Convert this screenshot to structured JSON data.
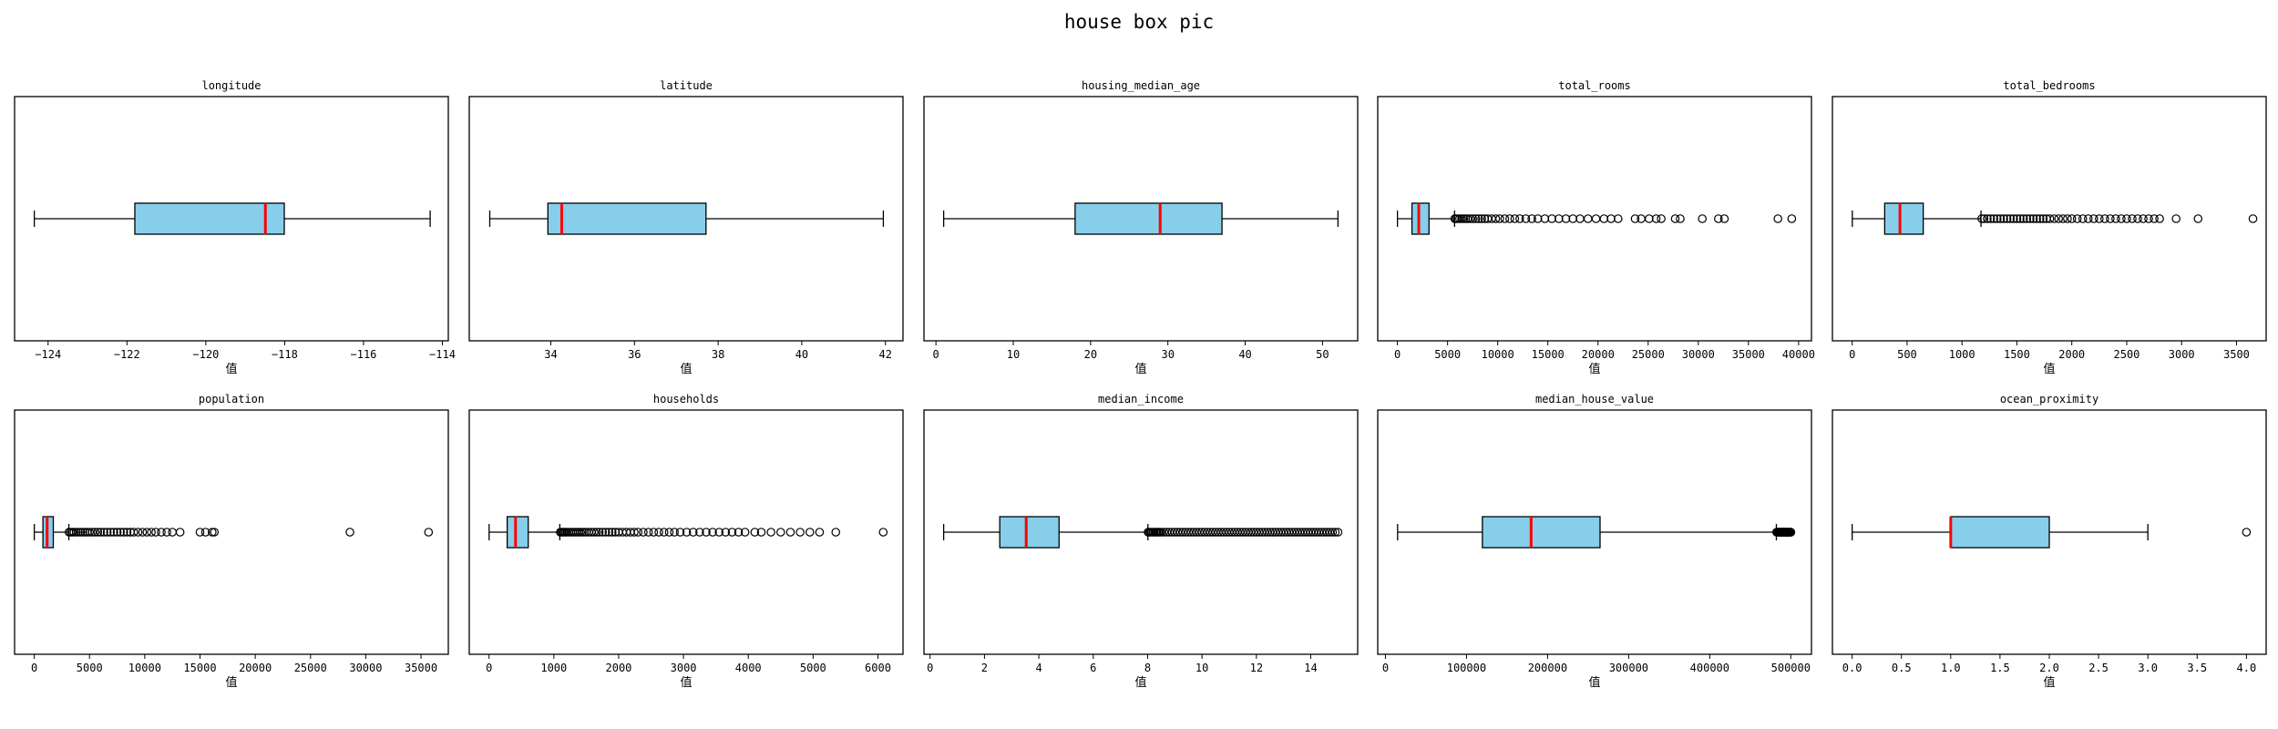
{
  "figure": {
    "title": "house box pic",
    "box_fill": "#87CEEB",
    "median_color": "#FF0000",
    "line_color": "#000000"
  },
  "chart_data": [
    {
      "type": "boxplot",
      "title": "longitude",
      "xlabel": "值",
      "xlim": [
        -124.85,
        -113.85
      ],
      "ticks": [
        -124,
        -122,
        -120,
        -118,
        -116,
        -114
      ],
      "tick_labels": [
        "−124",
        "−122",
        "−120",
        "−118",
        "−116",
        "−114"
      ],
      "stats": {
        "min": -124.35,
        "q1": -121.8,
        "median": -118.49,
        "q3": -118.01,
        "max": -114.31
      },
      "outliers": []
    },
    {
      "type": "boxplot",
      "title": "latitude",
      "xlabel": "值",
      "xlim": [
        32.05,
        42.42
      ],
      "ticks": [
        34,
        36,
        38,
        40,
        42
      ],
      "tick_labels": [
        "34",
        "36",
        "38",
        "40",
        "42"
      ],
      "stats": {
        "min": 32.54,
        "q1": 33.93,
        "median": 34.26,
        "q3": 37.71,
        "max": 41.95
      },
      "outliers": []
    },
    {
      "type": "boxplot",
      "title": "housing_median_age",
      "xlabel": "值",
      "xlim": [
        -1.55,
        54.55
      ],
      "ticks": [
        0,
        10,
        20,
        30,
        40,
        50
      ],
      "tick_labels": [
        "0",
        "10",
        "20",
        "30",
        "40",
        "50"
      ],
      "stats": {
        "min": 1,
        "q1": 18,
        "median": 29,
        "q3": 37,
        "max": 52
      },
      "outliers": []
    },
    {
      "type": "boxplot",
      "title": "total_rooms",
      "xlabel": "值",
      "xlim": [
        -1964,
        41284
      ],
      "ticks": [
        0,
        5000,
        10000,
        15000,
        20000,
        25000,
        30000,
        35000,
        40000
      ],
      "tick_labels": [
        "0",
        "5000",
        "10000",
        "15000",
        "20000",
        "25000",
        "30000",
        "35000",
        "40000"
      ],
      "stats": {
        "min": 2,
        "q1": 1448,
        "median": 2127,
        "q3": 3148,
        "max": 5698
      },
      "outliers": [
        5720,
        5850,
        6000,
        6200,
        6400,
        6600,
        6800,
        7000,
        7250,
        7500,
        7800,
        8100,
        8400,
        8700,
        9000,
        9400,
        9800,
        10200,
        10700,
        11200,
        11700,
        12200,
        12800,
        13400,
        14000,
        14700,
        15400,
        16100,
        16800,
        17500,
        18200,
        19000,
        19800,
        20600,
        21300,
        22000,
        23700,
        24300,
        25100,
        25800,
        26300,
        27700,
        28200,
        30400,
        32000,
        32600,
        37937,
        39320
      ]
    },
    {
      "type": "boxplot",
      "title": "total_bedrooms",
      "xlabel": "值",
      "xlim": [
        -180,
        3770
      ],
      "ticks": [
        0,
        500,
        1000,
        1500,
        2000,
        2500,
        3000,
        3500
      ],
      "tick_labels": [
        "0",
        "500",
        "1000",
        "1500",
        "2000",
        "2500",
        "3000",
        "3500"
      ],
      "stats": {
        "min": 1,
        "q1": 296,
        "median": 435,
        "q3": 647,
        "max": 1173
      },
      "outliers": [
        1180,
        1200,
        1230,
        1260,
        1290,
        1320,
        1350,
        1380,
        1410,
        1440,
        1470,
        1500,
        1530,
        1560,
        1590,
        1620,
        1650,
        1680,
        1710,
        1740,
        1770,
        1800,
        1840,
        1880,
        1920,
        1960,
        2000,
        2050,
        2100,
        2150,
        2200,
        2250,
        2300,
        2350,
        2400,
        2450,
        2500,
        2550,
        2600,
        2650,
        2700,
        2750,
        2800,
        2950,
        3150,
        3650
      ]
    },
    {
      "type": "boxplot",
      "title": "population",
      "xlabel": "值",
      "xlim": [
        -1780,
        37470
      ],
      "ticks": [
        0,
        5000,
        10000,
        15000,
        20000,
        25000,
        30000,
        35000
      ],
      "tick_labels": [
        "0",
        "5000",
        "10000",
        "15000",
        "20000",
        "25000",
        "30000",
        "35000"
      ],
      "stats": {
        "min": 3,
        "q1": 787,
        "median": 1166,
        "q3": 1725,
        "max": 3132
      },
      "outliers": [
        3150,
        3300,
        3450,
        3600,
        3800,
        4000,
        4200,
        4400,
        4600,
        4800,
        5000,
        5250,
        5500,
        5750,
        6000,
        6300,
        6600,
        6900,
        7200,
        7500,
        7800,
        8100,
        8400,
        8700,
        9000,
        9400,
        9800,
        10200,
        10600,
        11000,
        11500,
        12000,
        12500,
        13200,
        15000,
        15500,
        16100,
        16300,
        28566,
        35682
      ]
    },
    {
      "type": "boxplot",
      "title": "households",
      "xlabel": "值",
      "xlim": [
        -305,
        6387
      ],
      "ticks": [
        0,
        1000,
        2000,
        3000,
        4000,
        5000,
        6000
      ],
      "tick_labels": [
        "0",
        "1000",
        "2000",
        "3000",
        "4000",
        "5000",
        "6000"
      ],
      "stats": {
        "min": 1,
        "q1": 280,
        "median": 409,
        "q3": 605,
        "max": 1092
      },
      "outliers": [
        1100,
        1120,
        1140,
        1160,
        1180,
        1200,
        1230,
        1260,
        1290,
        1320,
        1350,
        1380,
        1410,
        1440,
        1470,
        1500,
        1540,
        1580,
        1620,
        1660,
        1700,
        1750,
        1800,
        1850,
        1900,
        1950,
        2000,
        2060,
        2120,
        2180,
        2240,
        2300,
        2380,
        2460,
        2540,
        2620,
        2700,
        2780,
        2860,
        2950,
        3050,
        3150,
        3250,
        3350,
        3450,
        3550,
        3650,
        3750,
        3850,
        3950,
        4100,
        4200,
        4350,
        4500,
        4650,
        4800,
        4950,
        5100,
        5350,
        6082
      ]
    },
    {
      "type": "boxplot",
      "title": "median_income",
      "xlabel": "值",
      "xlim": [
        -0.225,
        15.725
      ],
      "ticks": [
        0,
        2,
        4,
        6,
        8,
        10,
        12,
        14
      ],
      "tick_labels": [
        "0",
        "2",
        "4",
        "6",
        "8",
        "10",
        "12",
        "14"
      ],
      "stats": {
        "min": 0.4999,
        "q1": 2.563,
        "median": 3.5348,
        "q3": 4.7432,
        "max": 8.0113
      },
      "outliers": [
        8.02,
        8.05,
        8.1,
        8.15,
        8.2,
        8.25,
        8.3,
        8.35,
        8.4,
        8.45,
        8.5,
        8.6,
        8.7,
        8.8,
        8.9,
        9.0,
        9.1,
        9.2,
        9.3,
        9.4,
        9.5,
        9.6,
        9.7,
        9.8,
        9.9,
        10.0,
        10.1,
        10.2,
        10.3,
        10.4,
        10.5,
        10.6,
        10.7,
        10.8,
        10.9,
        11.0,
        11.1,
        11.2,
        11.3,
        11.4,
        11.5,
        11.6,
        11.7,
        11.8,
        11.9,
        12.0,
        12.1,
        12.2,
        12.3,
        12.4,
        12.5,
        12.6,
        12.7,
        12.8,
        12.9,
        13.0,
        13.1,
        13.2,
        13.3,
        13.4,
        13.5,
        13.6,
        13.7,
        13.8,
        13.9,
        14.0,
        14.1,
        14.2,
        14.3,
        14.4,
        14.5,
        14.6,
        14.7,
        14.8,
        14.9,
        15.0001
      ]
    },
    {
      "type": "boxplot",
      "title": "median_house_value",
      "xlabel": "值",
      "xlim": [
        -9500,
        525500
      ],
      "ticks": [
        0,
        100000,
        200000,
        300000,
        400000,
        500000
      ],
      "tick_labels": [
        "0",
        "100000",
        "200000",
        "300000",
        "400000",
        "500000"
      ],
      "stats": {
        "min": 14999,
        "q1": 119600,
        "median": 179700,
        "q3": 264725,
        "max": 482200
      },
      "outliers": [
        482500,
        483000,
        483500,
        484000,
        484500,
        485000,
        485500,
        486000,
        486500,
        487000,
        487500,
        488000,
        488500,
        489000,
        489500,
        490000,
        490500,
        491000,
        491500,
        492000,
        492500,
        493000,
        493500,
        494000,
        494500,
        495000,
        495500,
        496000,
        496500,
        497000,
        497500,
        498000,
        498500,
        499000,
        499500,
        500000,
        500001
      ]
    },
    {
      "type": "boxplot",
      "title": "ocean_proximity",
      "xlabel": "值",
      "xlim": [
        -0.2,
        4.2
      ],
      "ticks": [
        0,
        0.5,
        1,
        1.5,
        2,
        2.5,
        3,
        3.5,
        4
      ],
      "tick_labels": [
        "0.0",
        "0.5",
        "1.0",
        "1.5",
        "2.0",
        "2.5",
        "3.0",
        "3.5",
        "4.0"
      ],
      "stats": {
        "min": 0,
        "q1": 1,
        "median": 1,
        "q3": 2,
        "max": 3
      },
      "outliers": [
        4
      ]
    }
  ]
}
